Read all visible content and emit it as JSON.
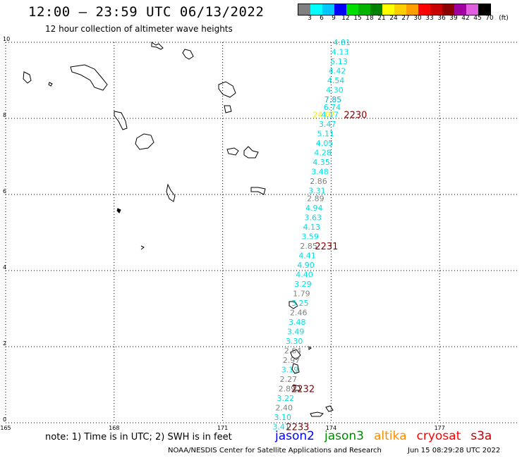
{
  "title": "12:00 – 23:59 UTC 06/13/2022",
  "subtitle": "12 hour collection of altimeter wave heights",
  "legend": {
    "unit": "(ft)",
    "swatches": [
      {
        "label": "3",
        "color": "#808080"
      },
      {
        "label": "6",
        "color": "#00ffff"
      },
      {
        "label": "9",
        "color": "#00c8ff"
      },
      {
        "label": "12",
        "color": "#0000ff"
      },
      {
        "label": "15",
        "color": "#00e000"
      },
      {
        "label": "18",
        "color": "#00b400"
      },
      {
        "label": "21",
        "color": "#008200"
      },
      {
        "label": "24",
        "color": "#ffff00"
      },
      {
        "label": "27",
        "color": "#ffd000"
      },
      {
        "label": "30",
        "color": "#ffa000"
      },
      {
        "label": "33",
        "color": "#ff0000"
      },
      {
        "label": "36",
        "color": "#c80000"
      },
      {
        "label": "39",
        "color": "#8c0000"
      },
      {
        "label": "42",
        "color": "#a000a0"
      },
      {
        "label": "45",
        "color": "#e060e0"
      },
      {
        "label": "70",
        "color": "#000000"
      }
    ]
  },
  "map": {
    "lon_ticks": [
      "165",
      "168",
      "171",
      "174",
      "177"
    ],
    "lat_ticks": [
      "0",
      "2",
      "4",
      "6",
      "8",
      "10"
    ]
  },
  "measurements": [
    {
      "value": "4.81",
      "lon": 174.3,
      "lat": 10.0,
      "color": "#00dede"
    },
    {
      "value": "4.13",
      "lon": 174.25,
      "lat": 9.75,
      "color": "#00dede"
    },
    {
      "value": "5.13",
      "lon": 174.22,
      "lat": 9.5,
      "color": "#00dede"
    },
    {
      "value": "4.42",
      "lon": 174.17,
      "lat": 9.25,
      "color": "#00dede"
    },
    {
      "value": "4.54",
      "lon": 174.13,
      "lat": 9.0,
      "color": "#00dede"
    },
    {
      "value": "4.30",
      "lon": 174.1,
      "lat": 8.75,
      "color": "#00dede"
    },
    {
      "value": "7.85",
      "lon": 174.05,
      "lat": 8.5,
      "color": "#00b4e0"
    },
    {
      "value": "6.74",
      "lon": 174.03,
      "lat": 8.3,
      "color": "#00dede"
    },
    {
      "value": "24.07",
      "lon": 173.8,
      "lat": 8.1,
      "color": "#f0f000"
    },
    {
      "value": "4.17",
      "lon": 173.97,
      "lat": 8.1,
      "color": "#00dede"
    },
    {
      "value": "3.47",
      "lon": 173.9,
      "lat": 7.85,
      "color": "#00dede"
    },
    {
      "value": "5.11",
      "lon": 173.85,
      "lat": 7.6,
      "color": "#00dede"
    },
    {
      "value": "4.05",
      "lon": 173.82,
      "lat": 7.35,
      "color": "#00dede"
    },
    {
      "value": "4.28",
      "lon": 173.77,
      "lat": 7.1,
      "color": "#00dede"
    },
    {
      "value": "4.35",
      "lon": 173.73,
      "lat": 6.85,
      "color": "#00dede"
    },
    {
      "value": "3.48",
      "lon": 173.69,
      "lat": 6.6,
      "color": "#00dede"
    },
    {
      "value": "2.86",
      "lon": 173.65,
      "lat": 6.35,
      "color": "#808080"
    },
    {
      "value": "3.31",
      "lon": 173.61,
      "lat": 6.1,
      "color": "#00dede"
    },
    {
      "value": "2.89",
      "lon": 173.57,
      "lat": 5.9,
      "color": "#808080"
    },
    {
      "value": "4.94",
      "lon": 173.53,
      "lat": 5.65,
      "color": "#00dede"
    },
    {
      "value": "3.63",
      "lon": 173.5,
      "lat": 5.4,
      "color": "#00dede"
    },
    {
      "value": "4.13",
      "lon": 173.46,
      "lat": 5.15,
      "color": "#00dede"
    },
    {
      "value": "3.59",
      "lon": 173.42,
      "lat": 4.9,
      "color": "#00dede"
    },
    {
      "value": "2.85",
      "lon": 173.38,
      "lat": 4.65,
      "color": "#808080"
    },
    {
      "value": "4.41",
      "lon": 173.34,
      "lat": 4.4,
      "color": "#00dede"
    },
    {
      "value": "4.90",
      "lon": 173.3,
      "lat": 4.15,
      "color": "#00dede"
    },
    {
      "value": "4.40",
      "lon": 173.26,
      "lat": 3.9,
      "color": "#00dede"
    },
    {
      "value": "3.29",
      "lon": 173.22,
      "lat": 3.65,
      "color": "#00dede"
    },
    {
      "value": "1.79",
      "lon": 173.18,
      "lat": 3.4,
      "color": "#808080"
    },
    {
      "value": "3.25",
      "lon": 173.14,
      "lat": 3.15,
      "color": "#00dede"
    },
    {
      "value": "2.46",
      "lon": 173.1,
      "lat": 2.9,
      "color": "#808080"
    },
    {
      "value": "3.48",
      "lon": 173.06,
      "lat": 2.65,
      "color": "#00dede"
    },
    {
      "value": "3.49",
      "lon": 173.02,
      "lat": 2.4,
      "color": "#00dede"
    },
    {
      "value": "3.30",
      "lon": 172.98,
      "lat": 2.15,
      "color": "#00dede"
    },
    {
      "value": "2.64",
      "lon": 172.94,
      "lat": 1.9,
      "color": "#808080"
    },
    {
      "value": "2.97",
      "lon": 172.9,
      "lat": 1.65,
      "color": "#808080"
    },
    {
      "value": "3.19",
      "lon": 172.86,
      "lat": 1.4,
      "color": "#00dede"
    },
    {
      "value": "2.27",
      "lon": 172.82,
      "lat": 1.15,
      "color": "#808080"
    },
    {
      "value": "2.89",
      "lon": 172.78,
      "lat": 0.9,
      "color": "#808080"
    },
    {
      "value": "3.22",
      "lon": 172.74,
      "lat": 0.65,
      "color": "#00dede"
    },
    {
      "value": "2.40",
      "lon": 172.7,
      "lat": 0.4,
      "color": "#808080"
    },
    {
      "value": "3.10",
      "lon": 172.66,
      "lat": 0.15,
      "color": "#00dede"
    },
    {
      "value": "3.41",
      "lon": 172.62,
      "lat": -0.1,
      "color": "#00dede"
    }
  ],
  "time_labels": [
    {
      "text": "2230",
      "lon": 174.35,
      "lat": 8.1
    },
    {
      "text": "2231",
      "lon": 173.55,
      "lat": 4.65
    },
    {
      "text": "2232",
      "lon": 172.9,
      "lat": 0.9
    },
    {
      "text": "2233",
      "lon": 172.75,
      "lat": -0.1
    }
  ],
  "time_label_color": "#8b0000",
  "note": "note:  1) Time is in UTC;  2) SWH is in feet",
  "missions": [
    {
      "name": "jason2",
      "color": "#0000ff"
    },
    {
      "name": "jason3",
      "color": "#008800"
    },
    {
      "name": "altika",
      "color": "#ff8c00"
    },
    {
      "name": "cryosat",
      "color": "#ff0000"
    },
    {
      "name": "s3a",
      "color": "#c00000"
    }
  ],
  "credit": "NOAA/NESDIS Center for Satellite Applications and Research",
  "generated": "Jun 15 08:29:28 UTC 2022"
}
